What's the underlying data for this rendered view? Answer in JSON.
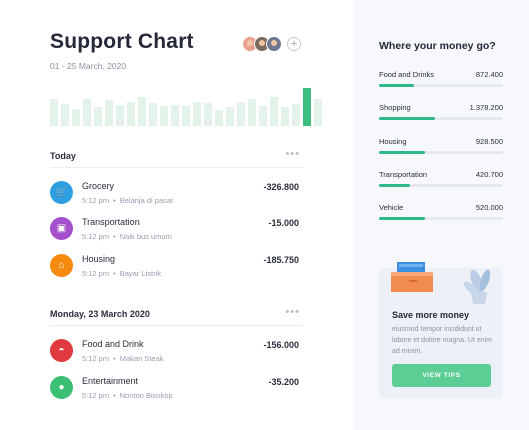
{
  "header": {
    "title": "Support Chart",
    "date_range": "01 - 25 March, 2020",
    "add_icon": "plus"
  },
  "avatars": [
    {
      "color": "#e8a08f"
    },
    {
      "color": "#7c6b5e"
    },
    {
      "color": "#6e7690"
    }
  ],
  "spending_bars": {
    "levels": [
      0.72,
      0.58,
      0.45,
      0.72,
      0.5,
      0.68,
      0.55,
      0.62,
      0.75,
      0.6,
      0.52,
      0.56,
      0.52,
      0.62,
      0.6,
      0.42,
      0.5,
      0.62,
      0.72,
      0.52,
      0.75,
      0.5,
      0.57,
      1.0,
      0.72
    ],
    "active_index": 23,
    "active_color": "#3fbf7f",
    "color": "#e3f3e9"
  },
  "sections": [
    {
      "label": "Today",
      "items": [
        {
          "name": "Grocery",
          "time": "5:12 pm",
          "note": "Belanja di pasar",
          "amount": "-326.800",
          "color": "#2d9ee0",
          "icon": "cart-icon",
          "glyph": "🛒"
        },
        {
          "name": "Transportation",
          "time": "5:12 pm",
          "note": "Naik bus umum",
          "amount": "-15.000",
          "color": "#a44fcb",
          "icon": "bus-icon",
          "glyph": "▣"
        },
        {
          "name": "Housing",
          "time": "5:12 pm",
          "note": "Bayar Listrik",
          "amount": "-185.750",
          "color": "#f7890f",
          "icon": "home-icon",
          "glyph": "⌂"
        }
      ]
    },
    {
      "label": "Monday, 23 March 2020",
      "items": [
        {
          "name": "Food and Drink",
          "time": "5:12 pm",
          "note": "Makan Steak",
          "amount": "-156.000",
          "color": "#e0393e",
          "icon": "food-icon",
          "glyph": "◓"
        },
        {
          "name": "Entertainment",
          "time": "5:12 pm",
          "note": "Nonton Bioskop",
          "amount": "-35.200",
          "color": "#3bbf75",
          "icon": "play-icon",
          "glyph": "●"
        }
      ]
    }
  ],
  "money_panel": {
    "title": "Where your money go?",
    "categories": [
      {
        "label": "Food and Drinks",
        "value": "872.400",
        "fraction": 0.28
      },
      {
        "label": "Shopping",
        "value": "1.378.200",
        "fraction": 0.45
      },
      {
        "label": "Housing",
        "value": "928.500",
        "fraction": 0.37
      },
      {
        "label": "Transportation",
        "value": "420.700",
        "fraction": 0.25
      },
      {
        "label": "Vehicle",
        "value": "520.000",
        "fraction": 0.37
      }
    ]
  },
  "tips": {
    "title": "Save more money",
    "text": "eiusmod tempor incididunt ut labore et dolore magna. Ut enim ad minim.",
    "button_label": "VIEW TIPS"
  }
}
